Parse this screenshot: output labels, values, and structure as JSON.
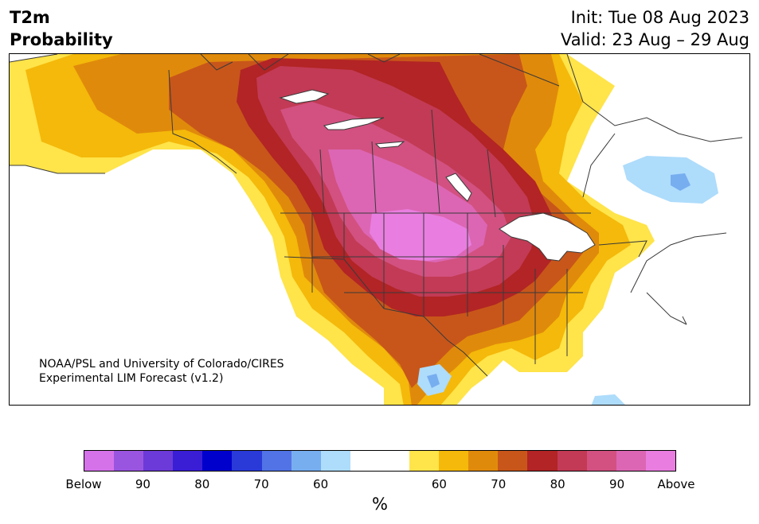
{
  "title": {
    "line1": "T2m",
    "line2": "Probability",
    "init": "Init: Tue 08 Aug 2023",
    "valid": "Valid: 23 Aug – 29 Aug"
  },
  "credit": {
    "line1": "NOAA/PSL and University of Colorado/CIRES",
    "line2": "Experimental LIM Forecast (v1.2)"
  },
  "colorbar": {
    "unit": "%",
    "colors": [
      "#d572ea",
      "#9a55e0",
      "#6c3ad8",
      "#3a1ed6",
      "#0000cc",
      "#2a3ad8",
      "#5273e6",
      "#77aef0",
      "#aedcfb",
      "#ffffff",
      "#ffffff",
      "#ffe44a",
      "#f4b90a",
      "#e08a0b",
      "#c8561a",
      "#b22425",
      "#c23a55",
      "#d25180",
      "#dc66b4",
      "#e97ee0"
    ],
    "ticks": [
      "Below",
      "90",
      "80",
      "70",
      "60",
      "60",
      "70",
      "80",
      "90",
      "Above"
    ]
  },
  "map": {
    "region": "North America",
    "fills": {
      "p60": "#ffe44a",
      "p65": "#f4b90a",
      "p70": "#e08a0b",
      "p75": "#c8561a",
      "p80": "#b22425",
      "p85": "#c23a55",
      "p90": "#d25180",
      "p95": "#dc66b4",
      "above": "#e97ee0",
      "b60": "#aedcfb",
      "b70": "#77aef0",
      "water": "#ffffff",
      "border": "#3a3a3a"
    }
  }
}
